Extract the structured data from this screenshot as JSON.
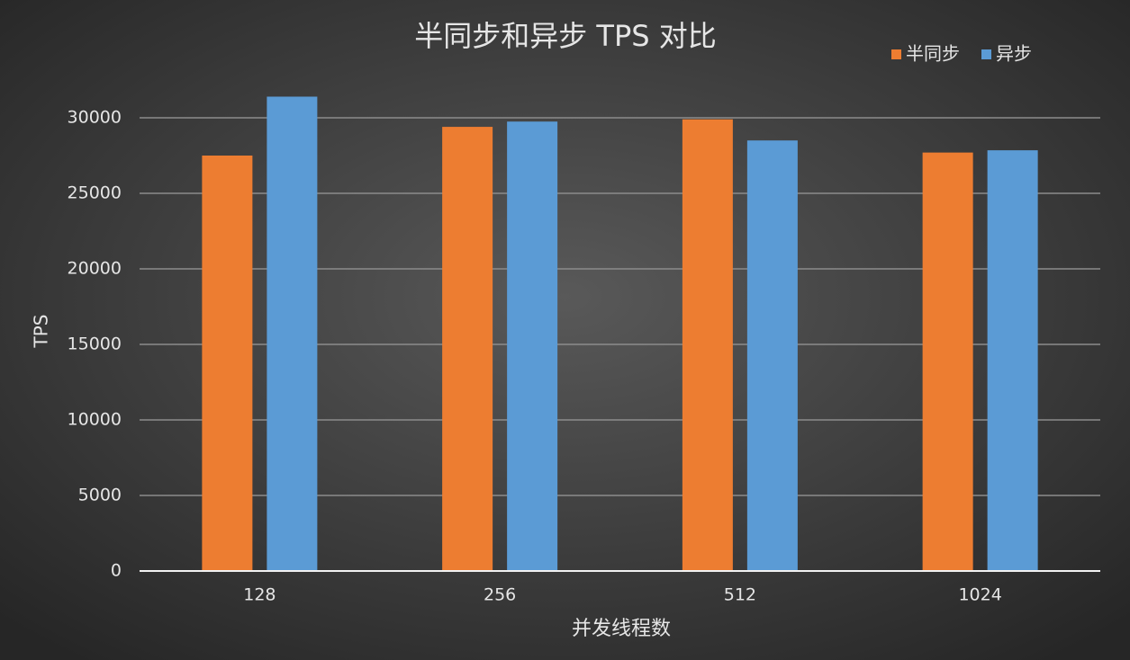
{
  "chart_data": {
    "type": "bar",
    "title": "半同步和异步 TPS 对比",
    "x_label": "并发线程数",
    "y_label": "TPS",
    "categories": [
      "128",
      "256",
      "512",
      "1024"
    ],
    "series": [
      {
        "name": "半同步",
        "color": "#ed7d31",
        "values": [
          27500,
          29400,
          29900,
          27700
        ]
      },
      {
        "name": "异步",
        "color": "#5b9bd5",
        "values": [
          31400,
          29750,
          28500,
          27850
        ]
      }
    ],
    "ylim": [
      0,
      30000
    ],
    "yticks": [
      0,
      5000,
      10000,
      15000,
      20000,
      25000,
      30000
    ],
    "grid": true,
    "legend": "top-right"
  }
}
